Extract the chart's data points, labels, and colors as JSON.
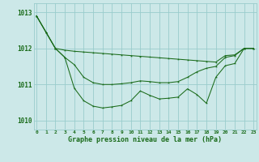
{
  "hours": [
    0,
    1,
    2,
    3,
    4,
    5,
    6,
    7,
    8,
    9,
    10,
    11,
    12,
    13,
    14,
    15,
    16,
    17,
    18,
    19,
    20,
    21,
    22,
    23
  ],
  "line_top": [
    1012.9,
    1012.45,
    1012.0,
    1011.95,
    1011.92,
    1011.9,
    1011.88,
    1011.86,
    1011.84,
    1011.82,
    1011.8,
    1011.78,
    1011.76,
    1011.74,
    1011.72,
    1011.7,
    1011.68,
    1011.66,
    1011.64,
    1011.62,
    1011.8,
    1011.82,
    1012.0,
    1012.0
  ],
  "line_mid": [
    1012.9,
    1012.45,
    1012.0,
    1011.75,
    1011.55,
    1011.2,
    1011.05,
    1011.0,
    1011.0,
    1011.02,
    1011.05,
    1011.1,
    1011.08,
    1011.05,
    1011.05,
    1011.08,
    1011.2,
    1011.35,
    1011.45,
    1011.5,
    1011.75,
    1011.8,
    1012.0,
    1012.0
  ],
  "line_bot": [
    1012.9,
    1012.45,
    1012.0,
    1011.75,
    1010.9,
    1010.55,
    1010.4,
    1010.35,
    1010.38,
    1010.42,
    1010.55,
    1010.82,
    1010.7,
    1010.6,
    1010.62,
    1010.65,
    1010.88,
    1010.72,
    1010.48,
    1011.2,
    1011.52,
    1011.58,
    1012.0,
    1012.0
  ],
  "yticks": [
    1010,
    1011,
    1012,
    1013
  ],
  "ylim": [
    1009.75,
    1013.25
  ],
  "xlim": [
    -0.3,
    23.3
  ],
  "xlabel": "Graphe pression niveau de la mer (hPa)",
  "line_color": "#1a6b1a",
  "bg_color": "#cce8e8",
  "grid_color": "#99cccc",
  "label_color": "#1a6b1a"
}
